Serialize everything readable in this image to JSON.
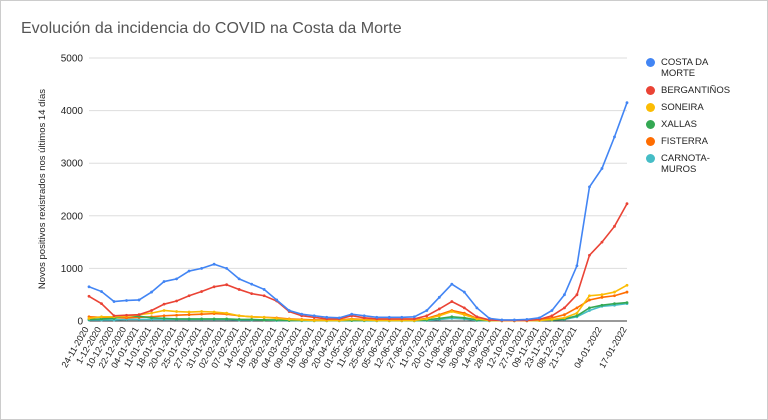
{
  "chart_data": {
    "type": "line",
    "title": "Evolución da incidencia do COVID na Costa da Morte",
    "y_label": "Novos positivos rexistrados nos últimos 14 días",
    "categories": [
      "24-11-2020",
      "1-12-2020",
      "10-12-2020",
      "22-12-2020",
      "04-01-2021",
      "11-01-2021",
      "18-01-2021",
      "20-01-2021",
      "25-01-2021",
      "27-01-2021",
      "31-01-2021",
      "02-02-2021",
      "07-02-2021",
      "14-02-2021",
      "18-02-2021",
      "28-02-2021",
      "04-03-2021",
      "09-03-2021",
      "18-03-2021",
      "06-04-2021",
      "20-04-2021",
      "01-05-2021",
      "11-05-2021",
      "25-05-2021",
      "05-06-2021",
      "12-06-2021",
      "27-06-2021",
      "11-07-2021",
      "20-07-2021",
      "01-08-2021",
      "16-08-2021",
      "30-08-2021",
      "14-09-2021",
      "28-09-2021",
      "12-10-2021",
      "27-10-2021",
      "09-11-2021",
      "23-11-2021",
      "08-12-2021",
      "21-12-2021",
      null,
      "04-01-2022",
      null,
      "17-01-2022"
    ],
    "series": [
      {
        "name": "COSTA DA MORTE",
        "color": "#4285f4",
        "values": [
          650,
          560,
          370,
          390,
          400,
          550,
          750,
          800,
          950,
          1000,
          1080,
          1000,
          800,
          700,
          600,
          400,
          200,
          130,
          100,
          70,
          60,
          130,
          100,
          70,
          70,
          70,
          80,
          200,
          450,
          700,
          550,
          250,
          50,
          20,
          20,
          30,
          60,
          200,
          500,
          1050,
          2550,
          2900,
          3500,
          4150
        ]
      },
      {
        "name": "BERGANTIÑOS",
        "color": "#ea4335",
        "values": [
          470,
          330,
          100,
          110,
          120,
          200,
          320,
          380,
          480,
          560,
          650,
          690,
          600,
          520,
          480,
          380,
          180,
          100,
          70,
          40,
          40,
          100,
          60,
          40,
          40,
          40,
          40,
          100,
          230,
          370,
          250,
          80,
          20,
          10,
          10,
          10,
          30,
          100,
          250,
          500,
          1250,
          1500,
          1800,
          2230
        ]
      },
      {
        "name": "SONEIRA",
        "color": "#fbbc04",
        "values": [
          50,
          80,
          80,
          90,
          120,
          150,
          200,
          180,
          170,
          180,
          170,
          150,
          100,
          80,
          70,
          50,
          30,
          20,
          10,
          10,
          10,
          30,
          20,
          10,
          10,
          10,
          10,
          40,
          100,
          180,
          120,
          40,
          10,
          5,
          5,
          5,
          10,
          30,
          60,
          150,
          480,
          500,
          550,
          680
        ]
      },
      {
        "name": "XALLAS",
        "color": "#34a853",
        "values": [
          30,
          40,
          50,
          100,
          90,
          60,
          50,
          40,
          40,
          40,
          40,
          40,
          30,
          30,
          20,
          20,
          10,
          10,
          5,
          5,
          5,
          10,
          10,
          5,
          5,
          5,
          5,
          20,
          50,
          80,
          60,
          20,
          5,
          5,
          5,
          5,
          10,
          20,
          40,
          100,
          250,
          300,
          330,
          350
        ]
      },
      {
        "name": "FISTERRA",
        "color": "#ff6d01",
        "values": [
          80,
          70,
          60,
          60,
          70,
          80,
          100,
          110,
          120,
          130,
          140,
          130,
          100,
          80,
          70,
          60,
          40,
          30,
          20,
          20,
          20,
          40,
          30,
          20,
          20,
          20,
          20,
          50,
          120,
          200,
          150,
          50,
          10,
          5,
          5,
          5,
          20,
          60,
          120,
          250,
          400,
          450,
          480,
          550
        ]
      },
      {
        "name": "CARNOTA-MUROS",
        "color": "#46bdc6",
        "values": [
          20,
          20,
          20,
          30,
          30,
          30,
          30,
          30,
          30,
          30,
          30,
          30,
          20,
          20,
          20,
          10,
          10,
          5,
          5,
          5,
          5,
          10,
          5,
          5,
          5,
          5,
          5,
          10,
          30,
          50,
          40,
          10,
          5,
          5,
          5,
          5,
          10,
          20,
          30,
          80,
          200,
          280,
          300,
          330
        ]
      }
    ],
    "ylim": [
      0,
      5000
    ],
    "yticks": [
      0,
      1000,
      2000,
      3000,
      4000,
      5000
    ],
    "grid": true
  }
}
